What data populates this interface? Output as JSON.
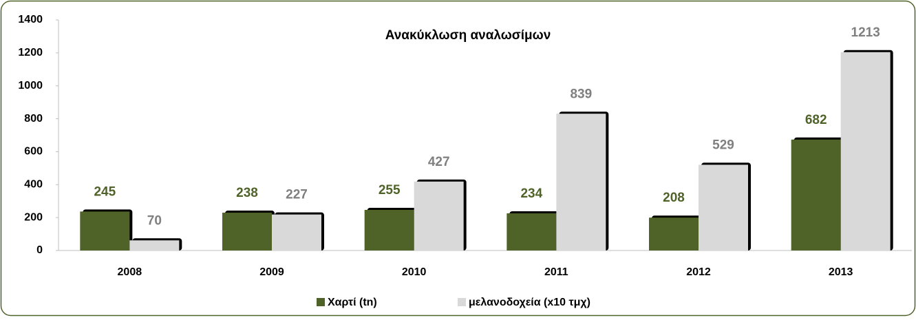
{
  "chart_data": {
    "type": "bar",
    "title": "Ανακύκλωση αναλωσίμων",
    "categories": [
      "2008",
      "2009",
      "2010",
      "2011",
      "2012",
      "2013"
    ],
    "series": [
      {
        "name": "Χαρτί (tn)",
        "color": "#4f6228",
        "values": [
          245,
          238,
          255,
          234,
          208,
          682
        ]
      },
      {
        "name": "μελανοδοχεία (x10 τμχ)",
        "color": "#d9d9d9",
        "values": [
          70,
          227,
          427,
          839,
          529,
          1213
        ]
      }
    ],
    "ylim": [
      0,
      1400
    ],
    "yticks": [
      0,
      200,
      400,
      600,
      800,
      1000,
      1200,
      1400
    ],
    "legend": "bottom"
  }
}
